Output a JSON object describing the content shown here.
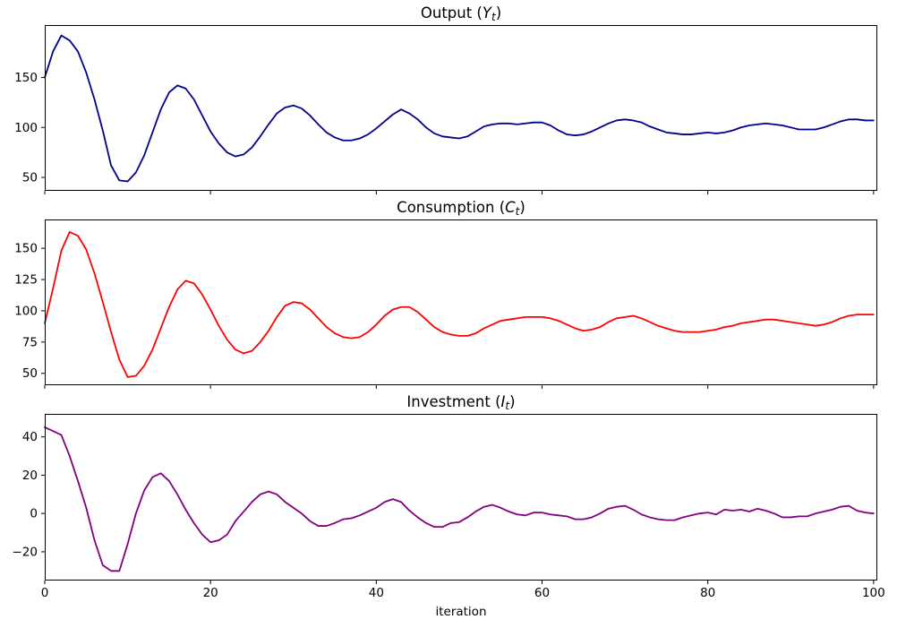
{
  "figure": {
    "background": "#ffffff",
    "frame_color": "#000000",
    "text_color": "#000000"
  },
  "xaxis": {
    "label": "iteration",
    "ticks": [
      0,
      20,
      40,
      60,
      80,
      100
    ],
    "xlim": [
      0,
      100.45
    ]
  },
  "chart_data": [
    {
      "type": "line",
      "title": {
        "prefix": "Output (",
        "variable": "Y",
        "subscript": "t",
        "suffix": ")"
      },
      "line_color": "#00008B",
      "y_ticks": [
        50,
        100,
        150
      ],
      "ylim": [
        36.6,
        202.4
      ],
      "x_start": 0,
      "x_step": 1,
      "values": [
        150,
        176,
        192,
        187,
        176,
        155,
        128,
        97,
        62,
        47,
        46,
        55,
        72,
        95,
        118,
        135,
        142,
        139,
        128,
        112,
        96,
        84,
        75,
        71,
        73,
        80,
        91,
        103,
        114,
        120,
        122,
        119,
        112,
        103,
        95,
        90,
        87,
        87,
        89,
        93,
        99,
        106,
        113,
        118,
        114,
        108,
        100,
        94,
        91,
        90,
        89,
        91,
        96,
        101,
        103,
        104,
        104,
        103,
        104,
        105,
        105,
        102,
        97,
        93,
        92,
        93,
        96,
        100,
        104,
        107,
        108,
        107,
        105,
        101,
        98,
        95,
        94,
        93,
        93,
        94,
        95,
        94,
        95,
        97,
        100,
        102,
        103,
        104,
        103,
        102,
        100,
        98,
        98,
        98,
        100,
        103,
        106,
        108,
        108,
        107,
        107
      ]
    },
    {
      "type": "line",
      "title": {
        "prefix": "Consumption (",
        "variable": "C",
        "subscript": "t",
        "suffix": ")"
      },
      "line_color": "#FF0000",
      "y_ticks": [
        50,
        75,
        100,
        125,
        150
      ],
      "ylim": [
        40.5,
        173
      ],
      "x_start": 0,
      "x_step": 1,
      "values": [
        90,
        118,
        148,
        163,
        160,
        149,
        130,
        107,
        83,
        61,
        47,
        48,
        56,
        69,
        86,
        103,
        117,
        124,
        122,
        113,
        101,
        88,
        77,
        69,
        66,
        68,
        75,
        84,
        95,
        104,
        107,
        106,
        101,
        94,
        87,
        82,
        79,
        78,
        79,
        83,
        89,
        96,
        101,
        103,
        103,
        99,
        93,
        87,
        83,
        81,
        80,
        80,
        82,
        86,
        89,
        92,
        93,
        94,
        95,
        95,
        95,
        94,
        92,
        89,
        86,
        84,
        85,
        87,
        91,
        94,
        95,
        96,
        94,
        91,
        88,
        86,
        84,
        83,
        83,
        83,
        84,
        85,
        87,
        88,
        90,
        91,
        92,
        93,
        93,
        92,
        91,
        90,
        89,
        88,
        89,
        91,
        94,
        96,
        97,
        97,
        97
      ]
    },
    {
      "type": "line",
      "title": {
        "prefix": "Investment (",
        "variable": "I",
        "subscript": "t",
        "suffix": ")"
      },
      "line_color": "#800080",
      "y_ticks": [
        -20,
        0,
        20,
        40
      ],
      "ylim": [
        -35,
        52
      ],
      "x_start": 0,
      "x_step": 1,
      "values": [
        45,
        43,
        41,
        30,
        17,
        3,
        -14,
        -27,
        -30,
        -30,
        -16,
        0,
        12,
        19,
        21,
        17,
        10,
        2,
        -5,
        -11,
        -15,
        -14,
        -11,
        -4,
        1,
        6,
        10,
        11.5,
        10,
        6,
        3,
        0,
        -4,
        -6.5,
        -6.5,
        -5,
        -3,
        -2.5,
        -1,
        1,
        3,
        6,
        7.5,
        6,
        1.5,
        -2,
        -5,
        -7,
        -7,
        -5,
        -4.5,
        -2,
        1,
        3.5,
        4.5,
        3,
        1,
        -0.5,
        -1,
        0.5,
        0.5,
        -0.5,
        -1,
        -1.5,
        -3,
        -3,
        -2,
        0,
        2.5,
        3.5,
        4,
        2,
        -0.5,
        -2,
        -3,
        -3.5,
        -3.5,
        -2,
        -1,
        0,
        0.5,
        -0.5,
        2,
        1.5,
        2,
        1,
        2.5,
        1.5,
        0,
        -2,
        -2,
        -1.5,
        -1.5,
        0,
        1,
        2,
        3.5,
        4,
        1.5,
        0.5,
        0
      ]
    }
  ]
}
